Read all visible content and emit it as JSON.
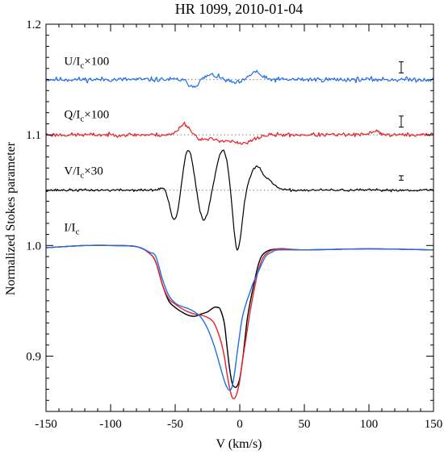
{
  "chart_data": {
    "type": "line",
    "title": "HR 1099, 2010-01-04",
    "xlabel": "V (km/s)",
    "ylabel": "Normalized Stokes parameter",
    "xlim": [
      -150,
      150
    ],
    "ylim": [
      0.85,
      1.2
    ],
    "x_ticks": [
      -150,
      -100,
      -50,
      0,
      50,
      100,
      150
    ],
    "x_tick_labels": [
      "-150",
      "-100",
      "-50",
      "0",
      "50",
      "100",
      "150"
    ],
    "y_ticks": [
      0.9,
      1.0,
      1.1,
      1.2
    ],
    "y_tick_labels": [
      "0.9",
      "1.0",
      "1.1",
      "1.2"
    ],
    "grid": false,
    "legend": "none",
    "annotations": [
      {
        "key": "u",
        "prefix": "U/I",
        "sub": "c",
        "suffix": "×100",
        "x": -136,
        "y": 1.163
      },
      {
        "key": "q",
        "prefix": "Q/I",
        "sub": "c",
        "suffix": "×100",
        "x": -136,
        "y": 1.115
      },
      {
        "key": "v",
        "prefix": "V/I",
        "sub": "c",
        "suffix": "×30",
        "x": -136,
        "y": 1.064
      },
      {
        "key": "i",
        "prefix": "I/I",
        "sub": "c",
        "suffix": "",
        "x": -136,
        "y": 1.013
      }
    ],
    "reference_lines": [
      {
        "y": 1.15,
        "color": "#808080"
      },
      {
        "y": 1.1,
        "color": "#808080"
      },
      {
        "y": 1.05,
        "color": "#808080"
      }
    ],
    "error_bars": [
      {
        "x": 125,
        "low": 1.156,
        "high": 1.166
      },
      {
        "x": 125,
        "low": 1.107,
        "high": 1.117
      },
      {
        "x": 125,
        "low": 1.059,
        "high": 1.063
      }
    ],
    "noisy_profiles": [
      {
        "key": "U",
        "color": "#1f6fe6",
        "baseline": 1.15,
        "noise": 0.0022,
        "seed": 11,
        "features": [
          {
            "center": -36,
            "width": 4,
            "amp": -0.006
          },
          {
            "center": -22,
            "width": 5,
            "amp": 0.004
          },
          {
            "center": -3,
            "width": 5,
            "amp": -0.003
          },
          {
            "center": 12,
            "width": 4,
            "amp": 0.007
          }
        ]
      },
      {
        "key": "Q",
        "color": "#e8202a",
        "baseline": 1.1,
        "noise": 0.0018,
        "seed": 23,
        "features": [
          {
            "center": -43,
            "width": 4,
            "amp": 0.01
          },
          {
            "center": -28,
            "width": 5,
            "amp": -0.004
          },
          {
            "center": -15,
            "width": 6,
            "amp": -0.004
          },
          {
            "center": 2,
            "width": 8,
            "amp": -0.008
          },
          {
            "center": 105,
            "width": 3,
            "amp": 0.004
          }
        ]
      },
      {
        "key": "V",
        "color": "#000000",
        "baseline": 1.05,
        "noise": 0.0011,
        "seed": 37,
        "features": [
          {
            "center": -58,
            "width": 3,
            "amp": 0.004
          },
          {
            "center": -50,
            "width": 4,
            "amp": -0.03
          },
          {
            "center": -40,
            "width": 4.5,
            "amp": 0.038
          },
          {
            "center": -28,
            "width": 4.5,
            "amp": -0.028
          },
          {
            "center": -13,
            "width": 5,
            "amp": 0.037
          },
          {
            "center": -2,
            "width": 3.5,
            "amp": -0.057
          },
          {
            "center": 13,
            "width": 5,
            "amp": 0.021
          },
          {
            "center": 24,
            "width": 4,
            "amp": 0.006
          }
        ]
      }
    ],
    "intensity_profiles": [
      {
        "key": "I-black",
        "color": "#000000",
        "x": [
          -150,
          -120,
          -100,
          -80,
          -70,
          -65,
          -60,
          -55,
          -50,
          -45,
          -40,
          -35,
          -30,
          -25,
          -20,
          -17,
          -15,
          -12,
          -10,
          -8,
          -6,
          -4,
          -2,
          0,
          2,
          4,
          6,
          10,
          15,
          20,
          30,
          50,
          100,
          150
        ],
        "y": [
          0.998,
          1.0,
          1.0,
          0.999,
          0.993,
          0.985,
          0.965,
          0.95,
          0.944,
          0.94,
          0.937,
          0.936,
          0.938,
          0.94,
          0.944,
          0.944,
          0.942,
          0.93,
          0.91,
          0.89,
          0.876,
          0.872,
          0.873,
          0.88,
          0.895,
          0.915,
          0.935,
          0.96,
          0.985,
          0.994,
          0.997,
          0.996,
          0.997,
          0.996
        ]
      },
      {
        "key": "I-red",
        "color": "#e8202a",
        "x": [
          -150,
          -120,
          -100,
          -80,
          -70,
          -65,
          -60,
          -55,
          -50,
          -45,
          -40,
          -35,
          -30,
          -25,
          -20,
          -15,
          -12,
          -10,
          -8,
          -6,
          -4,
          -2,
          0,
          2,
          4,
          8,
          12,
          15,
          20,
          30,
          50,
          100,
          150
        ],
        "y": [
          0.998,
          1.0,
          1.0,
          0.999,
          0.993,
          0.985,
          0.965,
          0.952,
          0.947,
          0.943,
          0.94,
          0.938,
          0.937,
          0.935,
          0.93,
          0.915,
          0.9,
          0.885,
          0.872,
          0.863,
          0.862,
          0.867,
          0.878,
          0.895,
          0.91,
          0.94,
          0.965,
          0.98,
          0.992,
          0.997,
          0.996,
          0.997,
          0.996
        ]
      },
      {
        "key": "I-blue",
        "color": "#1f6fe6",
        "x": [
          -150,
          -120,
          -100,
          -80,
          -70,
          -65,
          -60,
          -55,
          -50,
          -45,
          -40,
          -35,
          -30,
          -25,
          -20,
          -15,
          -12,
          -10,
          -8,
          -6,
          -4,
          -2,
          0,
          2,
          5,
          8,
          10,
          15,
          20,
          25,
          30,
          50,
          100,
          150
        ],
        "y": [
          0.998,
          1.0,
          1.0,
          0.999,
          0.994,
          0.99,
          0.97,
          0.955,
          0.948,
          0.945,
          0.943,
          0.94,
          0.935,
          0.925,
          0.91,
          0.89,
          0.878,
          0.872,
          0.869,
          0.872,
          0.885,
          0.903,
          0.92,
          0.935,
          0.948,
          0.958,
          0.965,
          0.978,
          0.99,
          0.994,
          0.996,
          0.996,
          0.997,
          0.996
        ]
      }
    ]
  }
}
